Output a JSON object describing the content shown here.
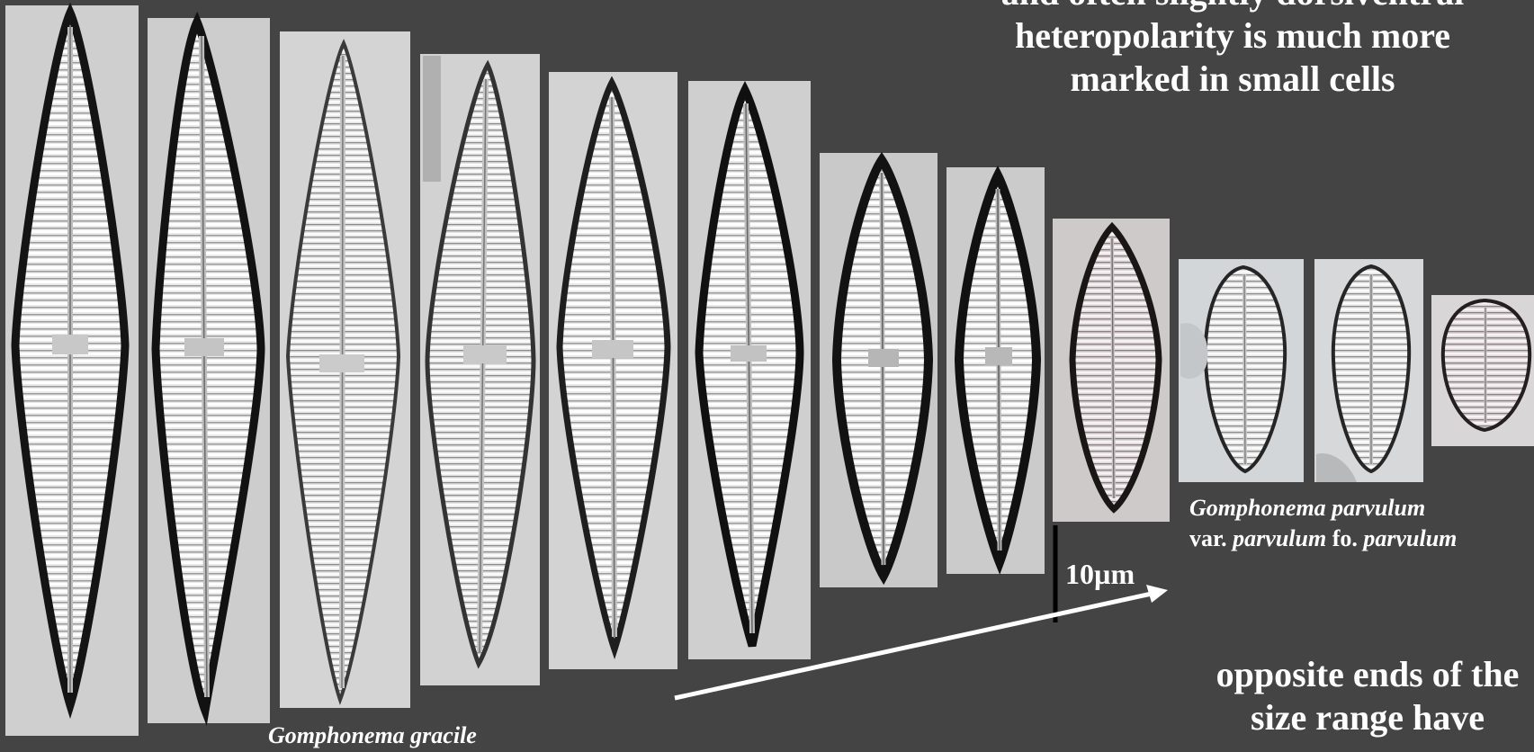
{
  "slide": {
    "caption_top": {
      "line1": "and often slightly dorsiventral",
      "line2": "heteropolarity is much more",
      "line3": "marked in small cells"
    },
    "caption_bottom": {
      "line1": "opposite ends of the",
      "line2": "size range have"
    },
    "label_large": "Gomphonema gracile",
    "label_small": {
      "line1": "Gomphonema parvulum",
      "line2_a": "var.",
      "line2_b": "parvulum",
      "line2_c": "fo.",
      "line2_d": "parvulum"
    },
    "scale_bar": "10µm"
  },
  "colors": {
    "background": "#444444",
    "frame_bg": "#d2d2d2",
    "valve_outline": "#1c1c1c",
    "striae": "#f4f4f4",
    "text": "#ffffff"
  }
}
